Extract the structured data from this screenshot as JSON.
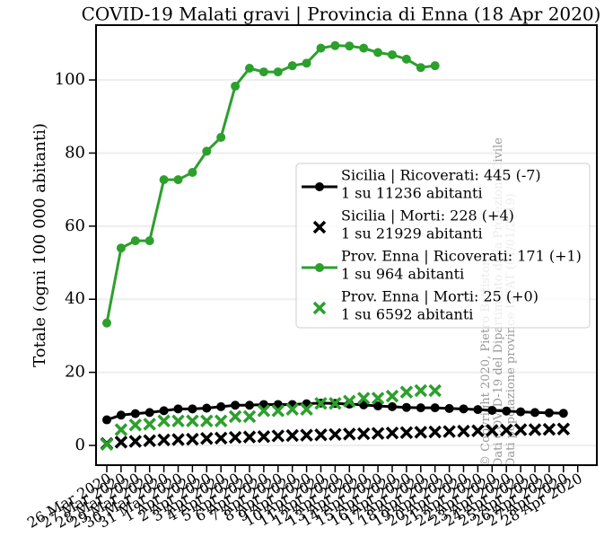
{
  "chart_data": {
    "type": "line",
    "title": "COVID-19 Malati gravi | Provincia di Enna (18 Apr 2020)",
    "ylabel": "Totale (ogni 100 000 abitanti)",
    "categories": [
      "26 Mar 2020",
      "27 Mar 2020",
      "28 Mar 2020",
      "29 Mar 2020",
      "30 Mar 2020",
      "31 Mar 2020",
      "1 Apr 2020",
      "2 Apr 2020",
      "3 Apr 2020",
      "4 Apr 2020",
      "5 Apr 2020",
      "6 Apr 2020",
      "7 Apr 2020",
      "8 Apr 2020",
      "9 Apr 2020",
      "10 Apr 2020",
      "11 Apr 2020",
      "12 Apr 2020",
      "13 Apr 2020",
      "14 Apr 2020",
      "15 Apr 2020",
      "16 Apr 2020",
      "17 Apr 2020",
      "18 Apr 2020",
      "19 Apr 2020",
      "20 Apr 2020",
      "21 Apr 2020",
      "22 Apr 2020",
      "23 Apr 2020",
      "24 Apr 2020",
      "25 Apr 2020",
      "26 Apr 2020",
      "27 Apr 2020",
      "28 Apr 2020"
    ],
    "ylim": [
      -5.4,
      115
    ],
    "yticks": [
      0,
      20,
      40,
      60,
      80,
      100
    ],
    "grid": true,
    "legend": "right",
    "series": [
      {
        "name": [
          "Sicilia | Ricoverati: 445 (-7)",
          "1 su 11236 abitanti"
        ],
        "color": "#000000",
        "marker": "o",
        "line": true,
        "values": [
          7,
          8.3,
          8.7,
          9,
          9.5,
          10,
          10,
          10.2,
          10.6,
          11,
          11,
          11.2,
          11.2,
          11.2,
          11.4,
          11.6,
          11.5,
          11.3,
          11.1,
          10.8,
          10.6,
          10.4,
          10.3,
          10.3,
          10.1,
          10,
          9.8,
          9.6,
          9.4,
          9.2,
          9.0,
          8.9,
          8.8,
          null
        ]
      },
      {
        "name": [
          "Sicilia | Morti: 228 (+4)",
          "1 su 21929 abitanti"
        ],
        "color": "#000000",
        "marker": "x",
        "line": false,
        "values": [
          0.5,
          0.9,
          1.1,
          1.3,
          1.5,
          1.6,
          1.7,
          1.9,
          2.0,
          2.2,
          2.3,
          2.4,
          2.6,
          2.7,
          2.8,
          2.9,
          3.0,
          3.1,
          3.2,
          3.3,
          3.4,
          3.5,
          3.6,
          3.7,
          3.8,
          3.9,
          4.0,
          4.1,
          4.2,
          4.3,
          4.3,
          4.4,
          4.5,
          null
        ]
      },
      {
        "name": [
          "Prov. Enna | Ricoverati: 171 (+1)",
          "1 su 964 abitanti"
        ],
        "color": "#2ca02c",
        "marker": "o",
        "line": true,
        "values": [
          33.5,
          54,
          56,
          56,
          72.7,
          72.7,
          74.7,
          80.5,
          84.3,
          98.3,
          103.2,
          102.2,
          102.2,
          103.9,
          104.6,
          108.7,
          109.4,
          109.3,
          108.7,
          107.5,
          106.9,
          105.7,
          103.4,
          103.9,
          null,
          null,
          null,
          null,
          null,
          null,
          null,
          null,
          null,
          null
        ]
      },
      {
        "name": [
          "Prov. Enna | Morti: 25 (+0)",
          "1 su 6592 abitanti"
        ],
        "color": "#2ca02c",
        "marker": "x",
        "line": false,
        "values": [
          0.3,
          4.3,
          5.6,
          5.8,
          6.7,
          6.7,
          6.7,
          6.7,
          6.7,
          7.9,
          7.9,
          9.5,
          9.5,
          9.9,
          9.9,
          11.5,
          11.5,
          12.1,
          12.9,
          12.9,
          13.5,
          14.6,
          15.0,
          15.0,
          null,
          null,
          null,
          null,
          null,
          null,
          null,
          null,
          null,
          null
        ]
      }
    ],
    "watermark": [
      "© Copyright 2020, Pietro Battiston",
      "Dati COVID-19 del Dipartimento della Protezione Civile",
      "Dati popolazione province ISTAT (01/01/2019)"
    ]
  }
}
